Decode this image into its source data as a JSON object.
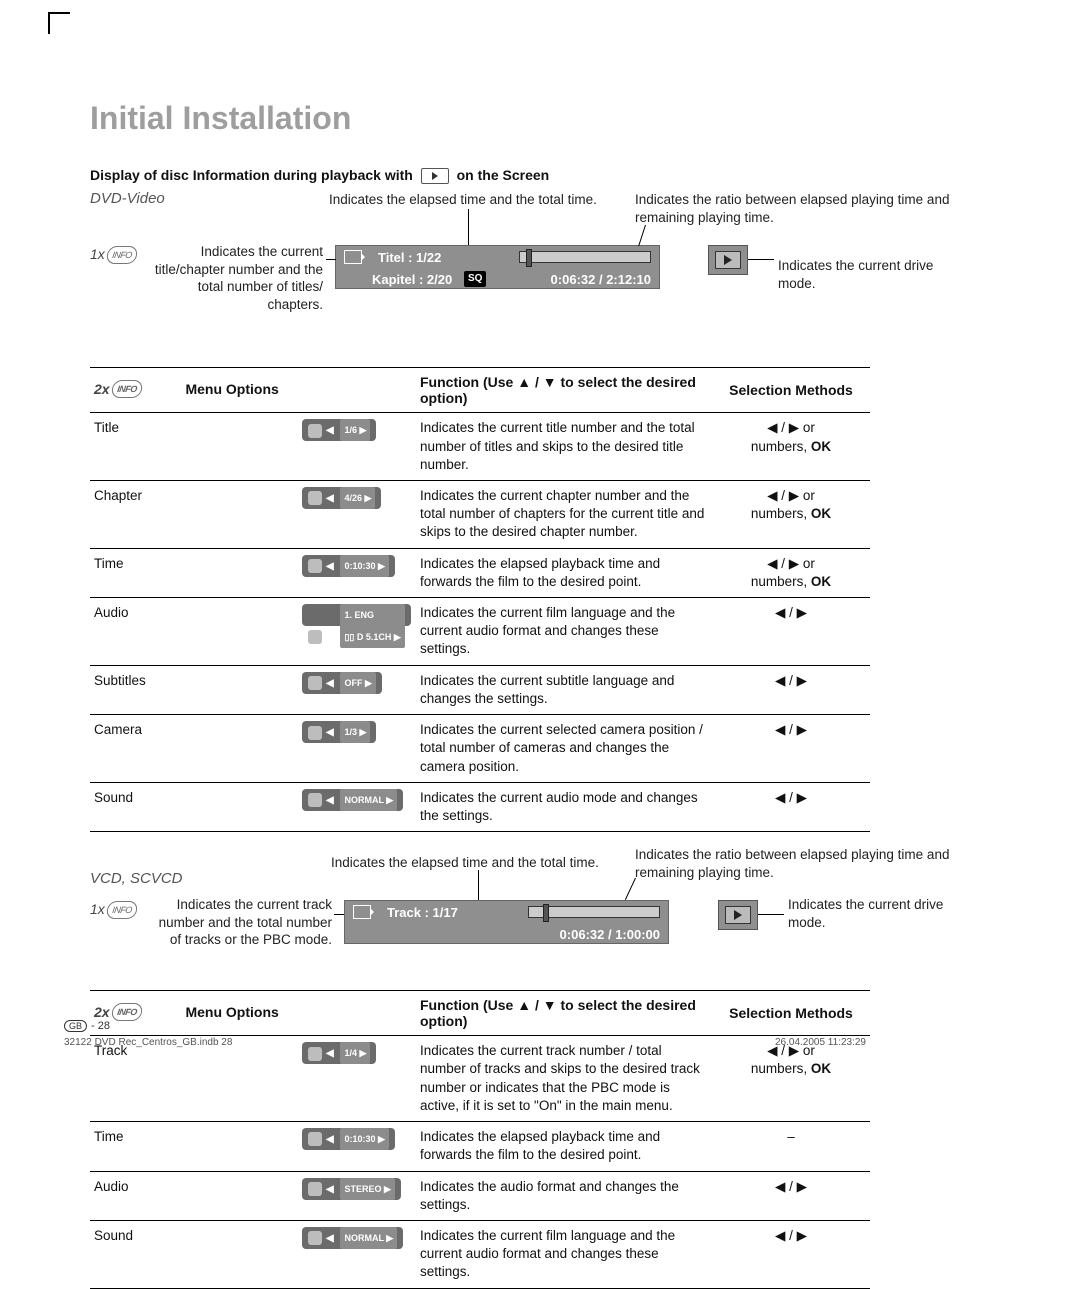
{
  "page": {
    "title": "Initial Installation",
    "section_title_pre": "Display of disc Information during playback with",
    "section_title_post": "on the Screen",
    "footer_line": "32122 DVD Rec_Centros_GB.indb   28",
    "footer_date": "26.04.2005   11:23:29",
    "page_num": "- 28",
    "gb": "GB"
  },
  "dvd": {
    "heading": "DVD-Video",
    "x1": "1x",
    "x2": "2x",
    "info_label": "INFO",
    "cap_elapsed": "Indicates the elapsed time and the total time.",
    "cap_ratio": "Indicates the ratio between elapsed playing time and remaining playing time.",
    "cap_current": "Indicates the current title/chapter number and the total number of titles/ chapters.",
    "cap_drive": "Indicates the current drive mode.",
    "osd_title": "Titel : 1/22",
    "osd_chapter": "Kapitel : 2/20",
    "osd_sq": "SQ",
    "osd_time": "0:06:32   /   2:12:10",
    "table": {
      "h1": "Menu Options",
      "h2_pre": "Function (Use",
      "h2_post": "to select the desired option)",
      "h3": "Selection Methods",
      "rows": [
        {
          "name": "Title",
          "badge": "1/6",
          "fn": "Indicates the current title number and the total number of titles and skips to the desired title number.",
          "sel": "◀ / ▶  or\nnumbers, OK"
        },
        {
          "name": "Chapter",
          "badge": "4/26",
          "fn": "Indicates the current chapter number and the total number of chapters for the current title and skips to the desired chapter number.",
          "sel": "◀ / ▶  or\nnumbers, OK"
        },
        {
          "name": "Time",
          "badge": "0:10:30",
          "fn": "Indicates the elapsed playback time and\nforwards the film to the desired point.",
          "sel": "◀ / ▶  or\nnumbers, OK"
        },
        {
          "name": "Audio",
          "badge": "1.   ENG\n▯▯ D 5.1CH",
          "fn": "Indicates the current film language and the current audio format and changes these settings.",
          "sel": "◀ / ▶"
        },
        {
          "name": "Subtitles",
          "badge": "OFF",
          "fn": "Indicates the current subtitle language and\nchanges the settings.",
          "sel": "◀ / ▶"
        },
        {
          "name": "Camera",
          "badge": "1/3",
          "fn": "Indicates the current selected camera position / total number of cameras and changes the camera position.",
          "sel": "◀ / ▶"
        },
        {
          "name": "Sound",
          "badge": "NORMAL",
          "fn": "Indicates the current audio mode and changes the settings.",
          "sel": "◀ / ▶"
        }
      ]
    }
  },
  "vcd": {
    "heading": "VCD, SCVCD",
    "cap_elapsed": "Indicates the elapsed time and the total time.",
    "cap_ratio": "Indicates the ratio between elapsed playing time and remaining playing time.",
    "cap_current": "Indicates the current track number and the total number of tracks or the PBC mode.",
    "cap_drive": "Indicates the current drive mode.",
    "osd_track": "Track : 1/17",
    "osd_time": "0:06:32   /   1:00:00",
    "table": {
      "rows": [
        {
          "name": "Track",
          "badge": "1/4",
          "fn": "Indicates the current track number / total number of tracks and skips to the desired track number or indicates that the PBC mode is active, if it is set to \"On\" in the main menu.",
          "sel": "◀ / ▶  or\nnumbers, OK"
        },
        {
          "name": "Time",
          "badge": "0:10:30",
          "fn": "Indicates the elapsed playback time and forwards the film to the desired point.",
          "sel": "–"
        },
        {
          "name": "Audio",
          "badge": "STEREO",
          "fn": "Indicates the audio format and changes the settings.",
          "sel": "◀ / ▶"
        },
        {
          "name": "Sound",
          "badge": "NORMAL",
          "fn": "Indicates the current film language and the current audio format and changes these settings.",
          "sel": "◀ / ▶"
        }
      ]
    }
  }
}
